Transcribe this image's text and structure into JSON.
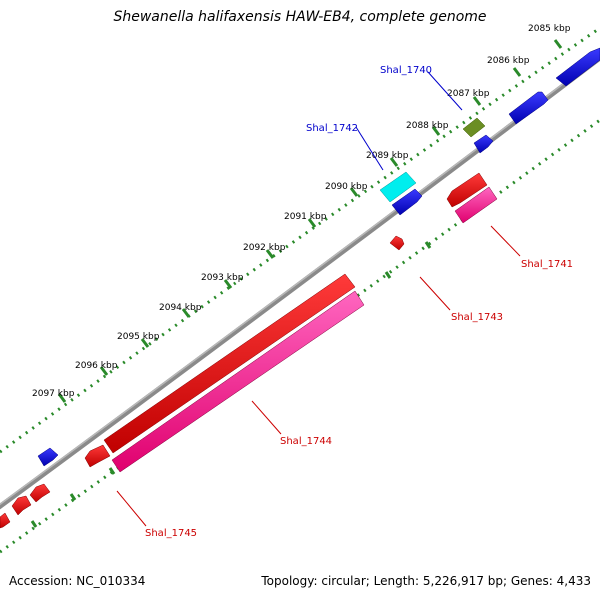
{
  "title": "Shewanella halifaxensis HAW-EB4, complete genome",
  "ticks": [
    {
      "label": "2085 kbp"
    },
    {
      "label": "2086 kbp"
    },
    {
      "label": "2087 kbp"
    },
    {
      "label": "2088 kbp"
    },
    {
      "label": "2089 kbp"
    },
    {
      "label": "2090 kbp"
    },
    {
      "label": "2091 kbp"
    },
    {
      "label": "2092 kbp"
    },
    {
      "label": "2093 kbp"
    },
    {
      "label": "2094 kbp"
    },
    {
      "label": "2095 kbp"
    },
    {
      "label": "2096 kbp"
    },
    {
      "label": "2097 kbp"
    }
  ],
  "gene_labels": [
    {
      "name": "Shal_1740",
      "color": "#0000cc"
    },
    {
      "name": "Shal_1742",
      "color": "#0000cc"
    },
    {
      "name": "Shal_1741",
      "color": "#cc0000"
    },
    {
      "name": "Shal_1743",
      "color": "#cc0000"
    },
    {
      "name": "Shal_1744",
      "color": "#cc0000"
    },
    {
      "name": "Shal_1745",
      "color": "#cc0000"
    }
  ],
  "colors": {
    "backbone": "#888888",
    "tick_track": "#2a8a2a",
    "forward_gene": "#0000ee",
    "reverse_gene": "#ee0000",
    "reverse_cds": "#ff2a9a",
    "selected_gene": "#00eeee",
    "rna_gene": "#6b8e23"
  },
  "footer": {
    "accession": "Accession: NC_010334",
    "summary": "Topology: circular; Length: 5,226,917 bp; Genes: 4,433"
  }
}
